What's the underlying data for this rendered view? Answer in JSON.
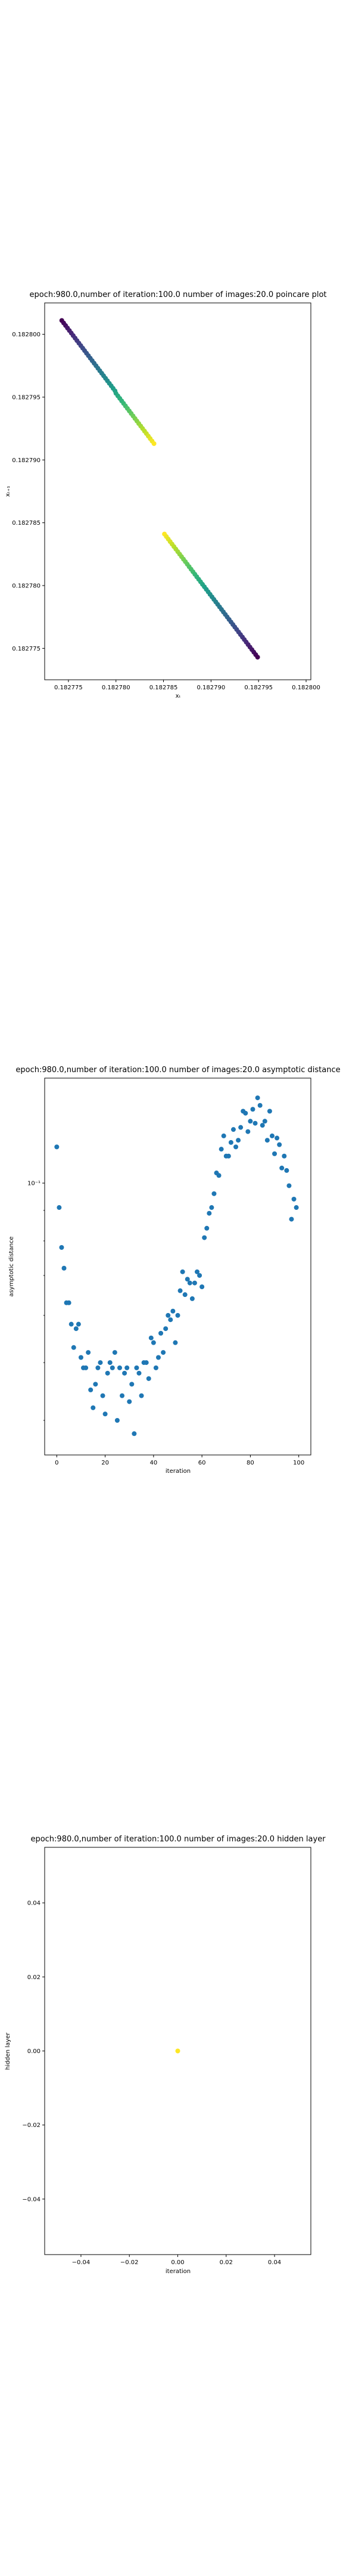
{
  "charts": [
    {
      "title": "epoch:980.0,number of iteration:100.0 number of images:20.0 poincare plot",
      "xlabel": "xₜ",
      "ylabel": "xₜ₊₁",
      "xticks": [
        "0.182775",
        "0.182780",
        "0.182785",
        "0.182790",
        "0.182795",
        "0.182800"
      ],
      "yticks": [
        "0.182800",
        "0.182795",
        "0.182790",
        "0.182785",
        "0.182780",
        "0.182775"
      ]
    },
    {
      "title": "epoch:980.0,number of iteration:100.0  number of images:20.0 asymptotic distance",
      "xlabel": "iteration",
      "ylabel": "asymptotic distance",
      "xticks": [
        "0",
        "20",
        "40",
        "60",
        "80",
        "100"
      ],
      "yticks": [
        "10⁻¹"
      ]
    },
    {
      "title": "epoch:980.0,number of iteration:100.0  number of images:20.0 hidden layer",
      "xlabel": "iteration",
      "ylabel": "hidden layer",
      "xticks": [
        "−0.04",
        "−0.02",
        "0.00",
        "0.02",
        "0.04"
      ],
      "yticks": [
        "0.04",
        "0.02",
        "0.00",
        "−0.02",
        "−0.04"
      ]
    }
  ],
  "chart_data": [
    {
      "type": "scatter",
      "title": "epoch:980.0,number of iteration:100.0 number of images:20.0 poincare plot",
      "xlabel": "xₜ",
      "ylabel": "xₜ₊₁",
      "xlim": [
        0.1827725,
        0.1828005
      ],
      "ylim": [
        0.1827725,
        0.1828025
      ],
      "colormap": "viridis",
      "color_by": "iteration",
      "x": [
        0.1827743,
        0.1827745,
        0.1827747,
        0.1827749,
        0.1827751,
        0.1827753,
        0.1827755,
        0.1827757,
        0.1827759,
        0.1827761,
        0.1827763,
        0.1827765,
        0.1827767,
        0.1827769,
        0.1827771,
        0.1827773,
        0.1827775,
        0.1827777,
        0.1827779,
        0.1827781,
        0.1827783,
        0.1827785,
        0.1827787,
        0.1827789,
        0.1827791,
        0.1827793,
        0.1827795,
        0.1827797,
        0.1827799,
        0.18278,
        0.1827802,
        0.1827804,
        0.1827806,
        0.1827808,
        0.182781,
        0.1827812,
        0.1827814,
        0.1827816,
        0.1827818,
        0.182782,
        0.1827822,
        0.1827824,
        0.1827826,
        0.1827828,
        0.182783,
        0.1827832,
        0.1827834,
        0.1827836,
        0.1827838,
        0.182784,
        0.1827851,
        0.1827853,
        0.1827855,
        0.1827857,
        0.1827859,
        0.1827861,
        0.1827863,
        0.1827865,
        0.1827867,
        0.1827869,
        0.1827871,
        0.1827873,
        0.1827875,
        0.1827877,
        0.1827879,
        0.1827881,
        0.1827883,
        0.1827885,
        0.1827887,
        0.1827889,
        0.1827891,
        0.1827893,
        0.1827895,
        0.1827897,
        0.1827899,
        0.1827901,
        0.1827903,
        0.1827905,
        0.1827907,
        0.1827909,
        0.1827911,
        0.1827913,
        0.1827915,
        0.1827917,
        0.1827919,
        0.1827921,
        0.1827923,
        0.1827925,
        0.1827927,
        0.1827929,
        0.1827931,
        0.1827933,
        0.1827935,
        0.1827937,
        0.1827939,
        0.1827941,
        0.1827943,
        0.1827945,
        0.1827947,
        0.1827949
      ],
      "y": [
        0.1828011,
        0.1828009,
        0.1828007,
        0.1828005,
        0.1828003,
        0.1828001,
        0.1827999,
        0.1827997,
        0.1827995,
        0.1827993,
        0.1827991,
        0.1827989,
        0.1827987,
        0.1827985,
        0.1827983,
        0.1827981,
        0.1827979,
        0.1827977,
        0.1827975,
        0.1827973,
        0.1827971,
        0.1827969,
        0.1827967,
        0.1827965,
        0.1827963,
        0.1827961,
        0.1827959,
        0.1827957,
        0.1827955,
        0.1827953,
        0.1827951,
        0.1827949,
        0.1827947,
        0.1827945,
        0.1827943,
        0.1827941,
        0.1827939,
        0.1827937,
        0.1827935,
        0.1827933,
        0.1827931,
        0.1827929,
        0.1827927,
        0.1827925,
        0.1827923,
        0.1827921,
        0.1827919,
        0.1827917,
        0.1827915,
        0.1827913,
        0.1827841,
        0.1827839,
        0.1827837,
        0.1827835,
        0.1827833,
        0.1827831,
        0.1827829,
        0.1827827,
        0.1827825,
        0.1827823,
        0.1827821,
        0.1827819,
        0.1827817,
        0.1827815,
        0.1827813,
        0.1827811,
        0.1827809,
        0.1827807,
        0.1827805,
        0.1827803,
        0.1827801,
        0.1827799,
        0.1827797,
        0.1827795,
        0.1827793,
        0.1827791,
        0.1827789,
        0.1827787,
        0.1827785,
        0.1827783,
        0.1827781,
        0.1827779,
        0.1827777,
        0.1827775,
        0.1827773,
        0.1827771,
        0.1827769,
        0.1827767,
        0.1827765,
        0.1827763,
        0.1827761,
        0.1827759,
        0.1827757,
        0.1827755,
        0.1827753,
        0.1827751,
        0.1827749,
        0.1827747,
        0.1827745,
        0.1827743
      ]
    },
    {
      "type": "scatter",
      "title": "epoch:980.0,number of iteration:100.0  number of images:20.0 asymptotic distance",
      "xlabel": "iteration",
      "ylabel": "asymptotic distance",
      "xlim": [
        -5,
        105
      ],
      "ylim": [
        0.035,
        0.15
      ],
      "yscale": "log",
      "grid": false,
      "color": "#1f77b4",
      "x": [
        0,
        1,
        2,
        3,
        4,
        5,
        6,
        7,
        8,
        9,
        10,
        11,
        12,
        13,
        14,
        15,
        16,
        17,
        18,
        19,
        20,
        21,
        22,
        23,
        24,
        25,
        26,
        27,
        28,
        29,
        30,
        31,
        32,
        33,
        34,
        35,
        36,
        37,
        38,
        39,
        40,
        41,
        42,
        43,
        44,
        45,
        46,
        47,
        48,
        49,
        50,
        51,
        52,
        53,
        54,
        55,
        56,
        57,
        58,
        59,
        60,
        61,
        62,
        63,
        64,
        65,
        66,
        67,
        68,
        69,
        70,
        71,
        72,
        73,
        74,
        75,
        76,
        77,
        78,
        79,
        80,
        81,
        82,
        83,
        84,
        85,
        86,
        87,
        88,
        89,
        90,
        91,
        92,
        93,
        94,
        95,
        96,
        97,
        98,
        99
      ],
      "values": [
        0.115,
        0.091,
        0.078,
        0.072,
        0.063,
        0.063,
        0.058,
        0.053,
        0.057,
        0.058,
        0.051,
        0.049,
        0.049,
        0.052,
        0.045,
        0.042,
        0.046,
        0.049,
        0.05,
        0.044,
        0.041,
        0.048,
        0.05,
        0.049,
        0.052,
        0.04,
        0.049,
        0.044,
        0.048,
        0.049,
        0.043,
        0.046,
        0.038,
        0.049,
        0.048,
        0.044,
        0.05,
        0.05,
        0.047,
        0.055,
        0.054,
        0.049,
        0.051,
        0.056,
        0.052,
        0.057,
        0.06,
        0.059,
        0.061,
        0.054,
        0.06,
        0.066,
        0.071,
        0.065,
        0.069,
        0.068,
        0.064,
        0.068,
        0.071,
        0.07,
        0.067,
        0.081,
        0.084,
        0.089,
        0.091,
        0.096,
        0.104,
        0.103,
        0.114,
        0.12,
        0.111,
        0.111,
        0.117,
        0.123,
        0.115,
        0.118,
        0.124,
        0.132,
        0.131,
        0.122,
        0.127,
        0.133,
        0.126,
        0.139,
        0.135,
        0.125,
        0.127,
        0.118,
        0.132,
        0.12,
        0.112,
        0.119,
        0.116,
        0.106,
        0.111,
        0.105,
        0.099,
        0.087,
        0.094,
        0.091
      ]
    },
    {
      "type": "scatter",
      "title": "epoch:980.0,number of iteration:100.0  number of images:20.0 hidden layer",
      "xlabel": "iteration",
      "ylabel": "hidden layer",
      "xlim": [
        -0.055,
        0.055
      ],
      "ylim": [
        -0.055,
        0.055
      ],
      "x": [
        0.0
      ],
      "y": [
        0.0
      ],
      "color": "#fde725"
    }
  ]
}
